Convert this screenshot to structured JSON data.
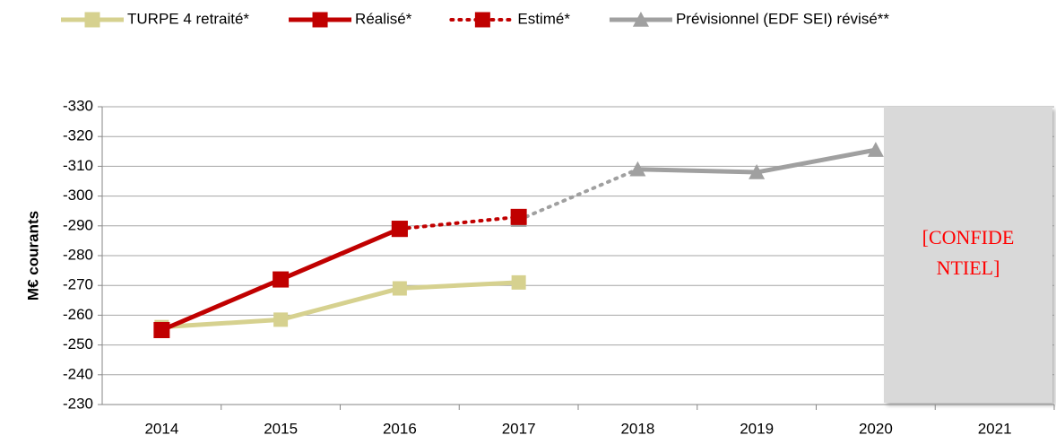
{
  "chart_data": {
    "type": "line",
    "y_label": "M€ courants",
    "categories": [
      "2014",
      "2015",
      "2016",
      "2017",
      "2018",
      "2019",
      "2020",
      "2021"
    ],
    "series": [
      {
        "name": "TURPE 4 retraité*",
        "color": "#d6d18f",
        "marker": "square",
        "line_style": "solid",
        "values": [
          -256,
          -258.5,
          -269,
          -271,
          null,
          null,
          null,
          null
        ]
      },
      {
        "name": "Prévisionnel (EDF SEI) révisé**",
        "color": "#a0a0a0",
        "marker": "triangle",
        "line_style": "solid",
        "values": [
          null,
          null,
          null,
          -292,
          -309,
          -308,
          -315.5,
          null
        ]
      },
      {
        "name": "Estimé*",
        "color": "#c00000",
        "marker": "square",
        "line_style": "dotted",
        "values": [
          null,
          null,
          -289,
          -293,
          null,
          null,
          null,
          null
        ]
      },
      {
        "name": "Réalisé*",
        "color": "#c00000",
        "marker": "square",
        "line_style": "solid",
        "values": [
          -255,
          -272,
          -289,
          null,
          null,
          null,
          null,
          null
        ]
      }
    ],
    "legend_order": [
      0,
      3,
      2,
      1
    ],
    "ylim": [
      -230,
      -330
    ],
    "yticks": [
      -330,
      -320,
      -310,
      -300,
      -290,
      -280,
      -270,
      -260,
      -250,
      -240,
      -230
    ],
    "grid": true,
    "annotation": [
      "[CONFIDE",
      "NTIEL]"
    ]
  }
}
